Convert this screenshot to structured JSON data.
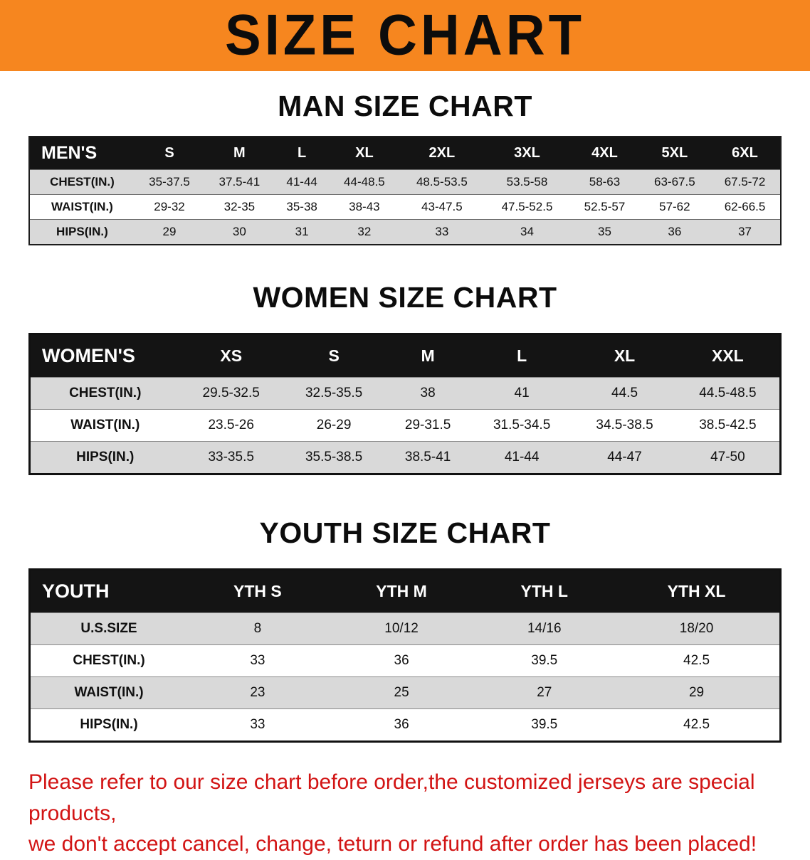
{
  "banner": {
    "title": "SIZE CHART",
    "bg_color": "#F6861F"
  },
  "sections": [
    {
      "id": "men",
      "heading": "MAN SIZE CHART",
      "table": {
        "header": [
          "MEN'S",
          "S",
          "M",
          "L",
          "XL",
          "2XL",
          "3XL",
          "4XL",
          "5XL",
          "6XL"
        ],
        "rows": [
          [
            "CHEST(IN.)",
            "35-37.5",
            "37.5-41",
            "41-44",
            "44-48.5",
            "48.5-53.5",
            "53.5-58",
            "58-63",
            "63-67.5",
            "67.5-72"
          ],
          [
            "WAIST(IN.)",
            "29-32",
            "32-35",
            "35-38",
            "38-43",
            "43-47.5",
            "47.5-52.5",
            "52.5-57",
            "57-62",
            "62-66.5"
          ],
          [
            "HIPS(IN.)",
            "29",
            "30",
            "31",
            "32",
            "33",
            "34",
            "35",
            "36",
            "37"
          ]
        ]
      }
    },
    {
      "id": "women",
      "heading": "WOMEN SIZE CHART",
      "table": {
        "header": [
          "WOMEN'S",
          "XS",
          "S",
          "M",
          "L",
          "XL",
          "XXL"
        ],
        "rows": [
          [
            "CHEST(IN.)",
            "29.5-32.5",
            "32.5-35.5",
            "38",
            "41",
            "44.5",
            "44.5-48.5"
          ],
          [
            "WAIST(IN.)",
            "23.5-26",
            "26-29",
            "29-31.5",
            "31.5-34.5",
            "34.5-38.5",
            "38.5-42.5"
          ],
          [
            "HIPS(IN.)",
            "33-35.5",
            "35.5-38.5",
            "38.5-41",
            "41-44",
            "44-47",
            "47-50"
          ]
        ]
      }
    },
    {
      "id": "youth",
      "heading": "YOUTH SIZE CHART",
      "table": {
        "header": [
          "YOUTH",
          "YTH S",
          "YTH M",
          "YTH L",
          "YTH XL"
        ],
        "rows": [
          [
            "U.S.SIZE",
            "8",
            "10/12",
            "14/16",
            "18/20"
          ],
          [
            "CHEST(IN.)",
            "33",
            "36",
            "39.5",
            "42.5"
          ],
          [
            "WAIST(IN.)",
            "23",
            "25",
            "27",
            "29"
          ],
          [
            "HIPS(IN.)",
            "33",
            "36",
            "39.5",
            "42.5"
          ]
        ]
      }
    }
  ],
  "disclaimer": {
    "color": "#D21414",
    "lines": [
      "Please refer to our size chart before order,the customized jerseys are special products,",
      "we don't accept cancel, change, teturn or refund after order has been placed!"
    ]
  }
}
